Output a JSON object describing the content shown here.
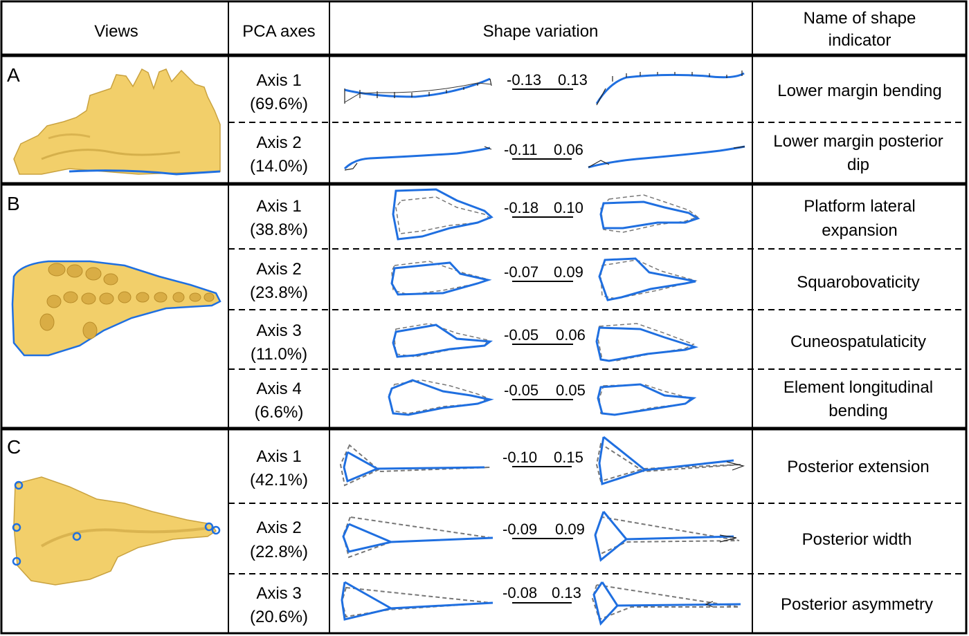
{
  "headers": {
    "views": "Views",
    "pca_axes": "PCA axes",
    "shape_variation": "Shape variation",
    "name_line1": "Name of shape",
    "name_line2": "indicator"
  },
  "panels": [
    {
      "label": "A",
      "rows": [
        {
          "axis": "Axis 1",
          "pct": "(69.6%)",
          "min": "-0.13",
          "max": "0.13",
          "name_lines": [
            "Lower margin bending"
          ]
        },
        {
          "axis": "Axis 2",
          "pct": "(14.0%)",
          "min": "-0.11",
          "max": "0.06",
          "name_lines": [
            "Lower margin posterior",
            "dip"
          ]
        }
      ]
    },
    {
      "label": "B",
      "rows": [
        {
          "axis": "Axis 1",
          "pct": "(38.8%)",
          "min": "-0.18",
          "max": "0.10",
          "name_lines": [
            "Platform lateral",
            "expansion"
          ]
        },
        {
          "axis": "Axis 2",
          "pct": "(23.8%)",
          "min": "-0.07",
          "max": "0.09",
          "name_lines": [
            "Squarobovaticity"
          ]
        },
        {
          "axis": "Axis 3",
          "pct": "(11.0%)",
          "min": "-0.05",
          "max": "0.06",
          "name_lines": [
            "Cuneospatulaticity"
          ]
        },
        {
          "axis": "Axis 4",
          "pct": "(6.6%)",
          "min": "-0.05",
          "max": "0.05",
          "name_lines": [
            "Element longitudinal",
            "bending"
          ]
        }
      ]
    },
    {
      "label": "C",
      "rows": [
        {
          "axis": "Axis 1",
          "pct": "(42.1%)",
          "min": "-0.10",
          "max": "0.15",
          "name_lines": [
            "Posterior extension"
          ]
        },
        {
          "axis": "Axis 2",
          "pct": "(22.8%)",
          "min": "-0.09",
          "max": "0.09",
          "name_lines": [
            "Posterior width"
          ]
        },
        {
          "axis": "Axis 3",
          "pct": "(20.6%)",
          "min": "-0.08",
          "max": "0.13",
          "name_lines": [
            "Posterior asymmetry"
          ]
        }
      ]
    }
  ],
  "colors": {
    "outline_blue": "#1f6fe0",
    "dashed_grey": "#777777",
    "fossil_fill": "#f2cf6a",
    "fossil_shadow": "#c9a23f"
  }
}
